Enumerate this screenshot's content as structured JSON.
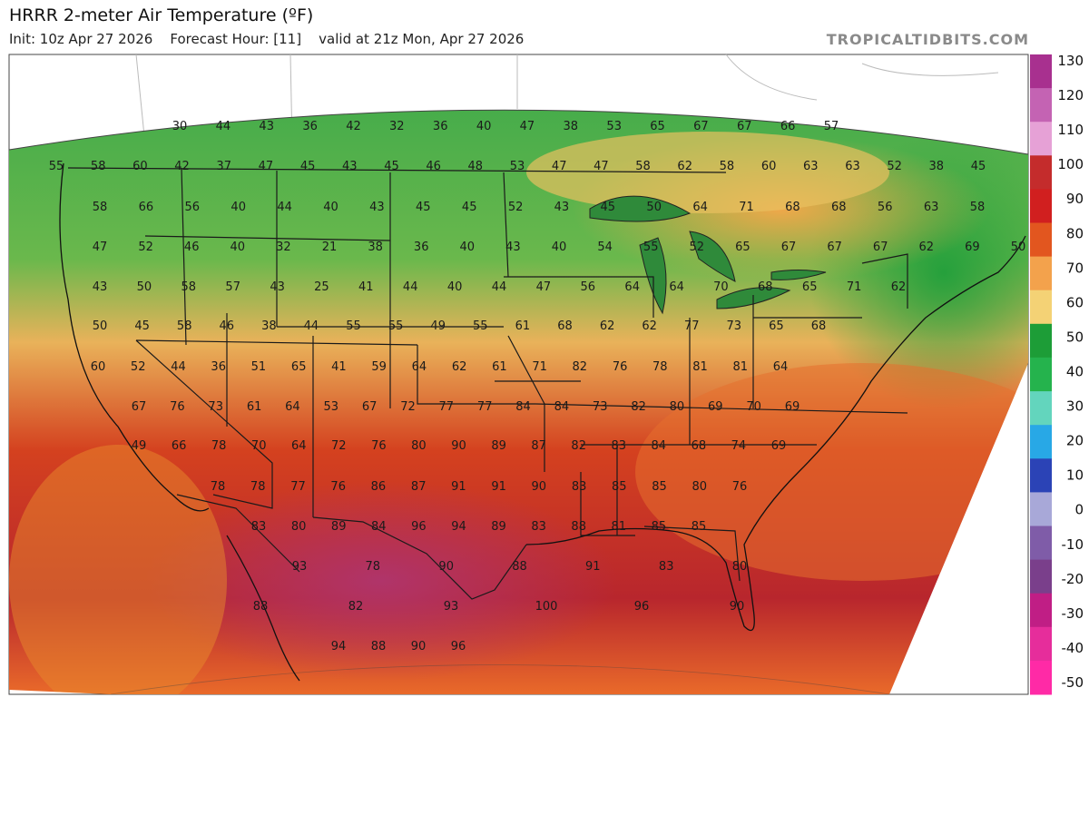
{
  "header": {
    "title": "HRRR 2-meter Air Temperature (ºF)",
    "subtitle_init": "Init: 10z Apr 27 2026",
    "subtitle_fhour": "Forecast Hour: [11]",
    "subtitle_valid": "valid at 21z Mon, Apr 27 2026",
    "brand": "TROPICALTIDBITS.COM"
  },
  "colorbar": {
    "ticks": [
      "130",
      "120",
      "110",
      "100",
      "90",
      "80",
      "70",
      "60",
      "50",
      "40",
      "30",
      "20",
      "10",
      "0",
      "-10",
      "-20",
      "-30",
      "-40",
      "-50"
    ],
    "colors": [
      "#a8308f",
      "#c463b3",
      "#e6a1d6",
      "#c42c2c",
      "#d11f1f",
      "#e2561f",
      "#f3a24c",
      "#f4d275",
      "#1d9d37",
      "#25b34d",
      "#63d5bd",
      "#28a8e6",
      "#2b43b6",
      "#a8a8d8",
      "#7f5ca8",
      "#7a3f8b",
      "#c01e85",
      "#e62d9b",
      "#ff2aa6"
    ]
  },
  "chart_data": {
    "type": "heatmap",
    "title": "HRRR 2-meter Air Temperature (ºF)",
    "units": "ºF",
    "colorbar_range": [
      -50,
      130
    ],
    "station_values": [
      {
        "row": 1,
        "values": [
          30,
          44,
          43,
          36,
          42,
          32,
          36,
          40,
          47,
          38,
          53,
          65,
          67,
          67,
          66,
          57
        ]
      },
      {
        "row": 2,
        "values": [
          55,
          58,
          60,
          42,
          37,
          47,
          45,
          43,
          45,
          46,
          48,
          53,
          47,
          47,
          58,
          62,
          58,
          60,
          63,
          63,
          52,
          38,
          45
        ]
      },
      {
        "row": 3,
        "values": [
          58,
          66,
          56,
          40,
          44,
          40,
          43,
          45,
          45,
          52,
          43,
          45,
          50,
          64,
          71,
          68,
          68,
          56,
          63,
          58
        ]
      },
      {
        "row": 4,
        "values": [
          47,
          52,
          46,
          40,
          32,
          21,
          38,
          36,
          40,
          43,
          40,
          54,
          55,
          52,
          65,
          67,
          67,
          67,
          62,
          69,
          50
        ]
      },
      {
        "row": 5,
        "values": [
          43,
          50,
          58,
          57,
          43,
          25,
          41,
          44,
          40,
          44,
          47,
          56,
          64,
          64,
          70,
          68,
          65,
          71,
          62
        ]
      },
      {
        "row": 6,
        "values": [
          50,
          45,
          58,
          46,
          38,
          44,
          55,
          55,
          49,
          55,
          61,
          68,
          62,
          62,
          77,
          73,
          65,
          68
        ]
      },
      {
        "row": 7,
        "values": [
          60,
          52,
          44,
          36,
          51,
          65,
          41,
          59,
          64,
          62,
          61,
          71,
          82,
          76,
          78,
          81,
          81,
          64
        ]
      },
      {
        "row": 8,
        "values": [
          67,
          76,
          73,
          61,
          64,
          53,
          67,
          72,
          77,
          77,
          84,
          84,
          73,
          82,
          80,
          69,
          70,
          69
        ]
      },
      {
        "row": 9,
        "values": [
          49,
          66,
          78,
          70,
          64,
          72,
          76,
          80,
          90,
          89,
          87,
          82,
          83,
          84,
          68,
          74,
          69
        ]
      },
      {
        "row": 10,
        "values": [
          78,
          78,
          77,
          76,
          86,
          87,
          91,
          91,
          90,
          83,
          85,
          85,
          80,
          76
        ]
      },
      {
        "row": 11,
        "values": [
          83,
          80,
          89,
          84,
          96,
          94,
          89,
          83,
          88,
          81,
          85,
          85
        ]
      },
      {
        "row": 12,
        "values": [
          93,
          78,
          90,
          88,
          91,
          83,
          80
        ]
      },
      {
        "row": 13,
        "values": [
          88,
          82,
          93,
          100,
          96,
          90
        ]
      },
      {
        "row": 14,
        "values": [
          94,
          88,
          90,
          96
        ]
      }
    ]
  }
}
